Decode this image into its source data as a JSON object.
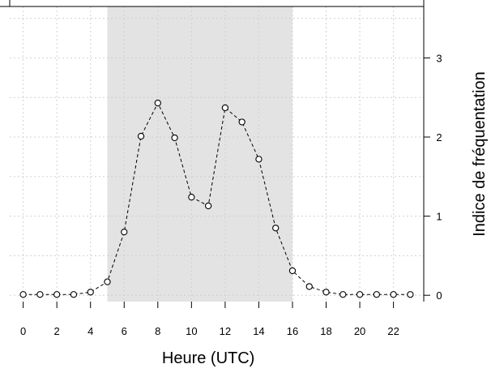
{
  "chart_data": {
    "type": "line",
    "xlabel": "Heure (UTC)",
    "ylabel": "Indice de fréquentation",
    "x": [
      0,
      1,
      2,
      3,
      4,
      5,
      6,
      7,
      8,
      9,
      10,
      11,
      12,
      13,
      14,
      15,
      16,
      17,
      18,
      19,
      20,
      21,
      22,
      23
    ],
    "values": [
      0.01,
      0.01,
      0.01,
      0.01,
      0.04,
      0.17,
      0.8,
      2.01,
      2.43,
      1.99,
      1.24,
      1.13,
      2.37,
      2.19,
      1.72,
      0.85,
      0.31,
      0.11,
      0.04,
      0.01,
      0.01,
      0.01,
      0.01,
      0.01
    ],
    "xlim": [
      -0.8,
      23.8
    ],
    "ylim": [
      -0.08,
      3.65
    ],
    "x_ticks": [
      0,
      2,
      4,
      6,
      8,
      10,
      12,
      14,
      16,
      18,
      20,
      22
    ],
    "x_tick_labels": [
      "0",
      "2",
      "4",
      "6",
      "8",
      "10",
      "12",
      "14",
      "16",
      "18",
      "20",
      "22"
    ],
    "y_ticks": [
      0,
      1,
      2,
      3
    ],
    "y_tick_labels": [
      "0",
      "1",
      "2",
      "3"
    ],
    "y_axis_side": "right",
    "shaded_region": {
      "x_from": 5,
      "x_to": 16,
      "color": "#e3e3e3"
    },
    "grid": true,
    "line_style": "dashed",
    "marker": "open-circle",
    "colors": {
      "line": "#000000",
      "grid": "#d0d0d0",
      "shade": "#e3e3e3"
    }
  }
}
